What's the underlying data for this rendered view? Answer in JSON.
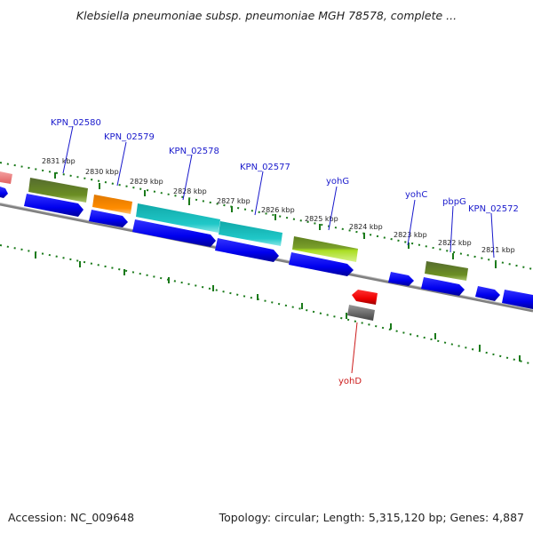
{
  "header": {
    "title": "Klebsiella pneumoniae subsp. pneumoniae MGH 78578, complete ..."
  },
  "footer": {
    "accession": "Accession: NC_009648",
    "summary": "Topology: circular; Length: 5,315,120 bp; Genes: 4,887"
  },
  "colors": {
    "backbone": "#808080",
    "tick": "#1a7a1a",
    "label_color": "#1a1acc",
    "label_color_reverse": "#cc1a1a",
    "cds_blue": "#0000ee",
    "olive": "#6b8e23",
    "orange": "#ff8c00",
    "cyan": "#20c8c8",
    "lime": "#aadd22",
    "red": "#ee0000",
    "grey_gene": "#777777",
    "pink": "#f08080"
  },
  "tick_labels": [
    "2831 kbp",
    "2830 kbp",
    "2829 kbp",
    "2828 kbp",
    "2827 kbp",
    "2826 kbp",
    "2825 kbp",
    "2824 kbp",
    "2823 kbp",
    "2822 kbp",
    "2821 kbp"
  ],
  "gene_labels": [
    {
      "text": "KPN_02580",
      "strand": "forward"
    },
    {
      "text": "KPN_02579",
      "strand": "forward"
    },
    {
      "text": "KPN_02578",
      "strand": "forward"
    },
    {
      "text": "KPN_02577",
      "strand": "forward"
    },
    {
      "text": "yohG",
      "strand": "forward"
    },
    {
      "text": "yohC",
      "strand": "forward"
    },
    {
      "text": "pbpG",
      "strand": "forward"
    },
    {
      "text": "KPN_02572",
      "strand": "forward"
    },
    {
      "text": "yohD",
      "strand": "reverse"
    }
  ]
}
